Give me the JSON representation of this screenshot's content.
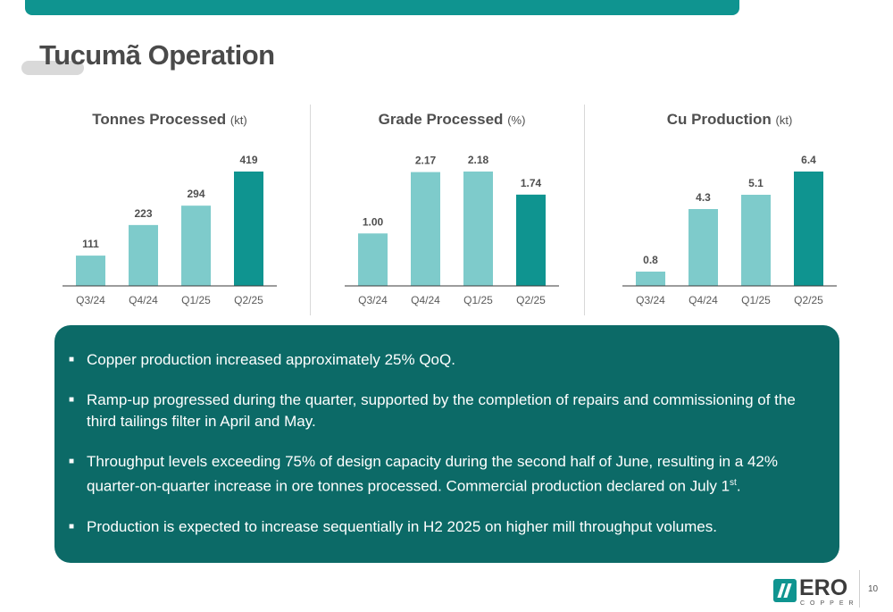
{
  "page": {
    "title": "Tucumã Operation",
    "number": "10",
    "accent": "#0f9490",
    "box_color": "#0c6a67"
  },
  "chart_data": [
    {
      "type": "bar",
      "title": "Tonnes Processed",
      "unit": "(kt)",
      "categories": [
        "Q3/24",
        "Q4/24",
        "Q1/25",
        "Q2/25"
      ],
      "values": [
        111,
        223,
        294,
        419
      ],
      "labels": [
        "111",
        "223",
        "294",
        "419"
      ],
      "ylim": [
        0,
        419
      ],
      "colors": [
        "#7ecbcb",
        "#7ecbcb",
        "#7ecbcb",
        "#0f9490"
      ]
    },
    {
      "type": "bar",
      "title": "Grade Processed",
      "unit": "(%)",
      "categories": [
        "Q3/24",
        "Q4/24",
        "Q1/25",
        "Q2/25"
      ],
      "values": [
        1.0,
        2.17,
        2.18,
        1.74
      ],
      "labels": [
        "1.00",
        "2.17",
        "2.18",
        "1.74"
      ],
      "ylim": [
        0,
        2.18
      ],
      "colors": [
        "#7ecbcb",
        "#7ecbcb",
        "#7ecbcb",
        "#0f9490"
      ]
    },
    {
      "type": "bar",
      "title": "Cu Production",
      "unit": "(kt)",
      "categories": [
        "Q3/24",
        "Q4/24",
        "Q1/25",
        "Q2/25"
      ],
      "values": [
        0.8,
        4.3,
        5.1,
        6.4
      ],
      "labels": [
        "0.8",
        "4.3",
        "5.1",
        "6.4"
      ],
      "ylim": [
        0,
        6.4
      ],
      "colors": [
        "#7ecbcb",
        "#7ecbcb",
        "#7ecbcb",
        "#0f9490"
      ]
    }
  ],
  "highlights": [
    {
      "text": "Copper production increased approximately 25% QoQ.",
      "sup": ""
    },
    {
      "text": "Ramp-up progressed during the quarter, supported by the completion of repairs and commissioning of the third tailings filter in April and May.",
      "sup": ""
    },
    {
      "text": "Throughput levels exceeding 75% of design capacity during the second half of June, resulting in a 42% quarter-on-quarter increase in ore tonnes processed. Commercial production declared on July 1",
      "sup": "st",
      "after": "."
    },
    {
      "text": "Production is expected to increase sequentially in H2 2025 on higher mill throughput volumes.",
      "sup": ""
    }
  ],
  "logo": {
    "word": "ERO",
    "sub": "COPPER",
    "icon": "ero-copper-logo-icon"
  }
}
